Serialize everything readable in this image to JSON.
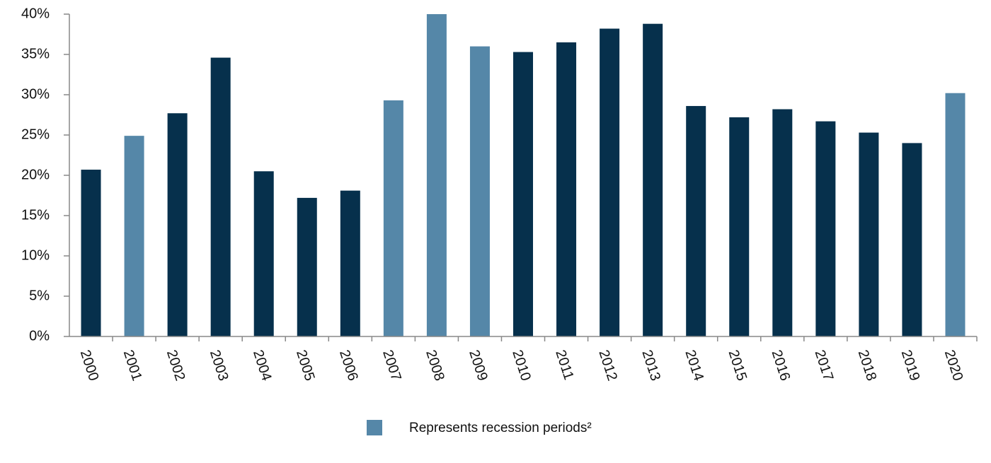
{
  "chart_data": {
    "type": "bar",
    "categories": [
      "2000",
      "2001",
      "2002",
      "2003",
      "2004",
      "2005",
      "2006",
      "2007",
      "2008",
      "2009",
      "2010",
      "2011",
      "2012",
      "2013",
      "2014",
      "2015",
      "2016",
      "2017",
      "2018",
      "2019",
      "2020"
    ],
    "values": [
      20.7,
      24.9,
      27.7,
      34.6,
      20.5,
      17.2,
      18.1,
      29.3,
      40,
      36.0,
      35.3,
      36.5,
      38.2,
      38.8,
      28.6,
      27.2,
      28.2,
      26.7,
      25.3,
      24.0,
      30.2
    ],
    "colors": [
      "#06304c",
      "#5587a8",
      "#06304c",
      "#06304c",
      "#06304c",
      "#06304c",
      "#06304c",
      "#5587a8",
      "#5587a8",
      "#5587a8",
      "#06304c",
      "#06304c",
      "#06304c",
      "#06304c",
      "#06304c",
      "#06304c",
      "#06304c",
      "#06304c",
      "#06304c",
      "#06304c",
      "#5587a8"
    ],
    "ylim": [
      0,
      40
    ],
    "yticks": [
      {
        "value": 0,
        "label": "0%"
      },
      {
        "value": 5,
        "label": "5%"
      },
      {
        "value": 10,
        "label": "10%"
      },
      {
        "value": 15,
        "label": "15%"
      },
      {
        "value": 20,
        "label": "20%"
      },
      {
        "value": 25,
        "label": "25%"
      },
      {
        "value": 30,
        "label": "30%"
      },
      {
        "value": 35,
        "label": "35%"
      },
      {
        "value": 40,
        "label": "40%"
      }
    ],
    "grid": false,
    "legend": {
      "label": "Represents recession periods²",
      "color": "#5587a8"
    }
  }
}
